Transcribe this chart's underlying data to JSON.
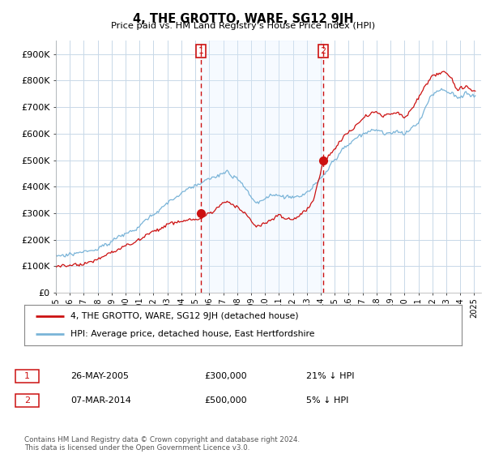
{
  "title": "4, THE GROTTO, WARE, SG12 9JH",
  "subtitle": "Price paid vs. HM Land Registry's House Price Index (HPI)",
  "ylabel_ticks": [
    "£0",
    "£100K",
    "£200K",
    "£300K",
    "£400K",
    "£500K",
    "£600K",
    "£700K",
    "£800K",
    "£900K"
  ],
  "ytick_values": [
    0,
    100000,
    200000,
    300000,
    400000,
    500000,
    600000,
    700000,
    800000,
    900000
  ],
  "ylim": [
    0,
    950000
  ],
  "xlim_start": 1995.0,
  "xlim_end": 2025.5,
  "hpi_color": "#7ab4d8",
  "price_color": "#cc1111",
  "shade_color": "#ddeeff",
  "purchase1_x": 2005.4,
  "purchase1_y": 300000,
  "purchase2_x": 2014.18,
  "purchase2_y": 500000,
  "vline_color": "#cc1111",
  "grid_color": "#c8d8e8",
  "background_color": "#ffffff",
  "legend_label_red": "4, THE GROTTO, WARE, SG12 9JH (detached house)",
  "legend_label_blue": "HPI: Average price, detached house, East Hertfordshire",
  "table_row1": [
    "1",
    "26-MAY-2005",
    "£300,000",
    "21% ↓ HPI"
  ],
  "table_row2": [
    "2",
    "07-MAR-2014",
    "£500,000",
    "5% ↓ HPI"
  ],
  "footer": "Contains HM Land Registry data © Crown copyright and database right 2024.\nThis data is licensed under the Open Government Licence v3.0.",
  "xtick_years": [
    1995,
    1996,
    1997,
    1998,
    1999,
    2000,
    2001,
    2002,
    2003,
    2004,
    2005,
    2006,
    2007,
    2008,
    2009,
    2010,
    2011,
    2012,
    2013,
    2014,
    2015,
    2016,
    2017,
    2018,
    2019,
    2020,
    2021,
    2022,
    2023,
    2024,
    2025
  ]
}
